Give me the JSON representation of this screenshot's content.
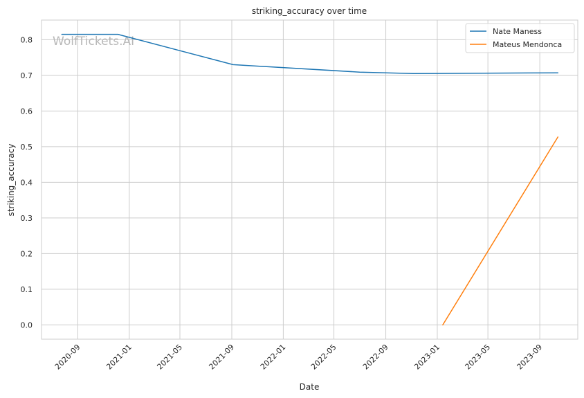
{
  "watermark": "WolfTickets.AI",
  "chart_data": {
    "type": "line",
    "title": "striking_accuracy over time",
    "xlabel": "Date",
    "ylabel": "striking_accuracy",
    "x_axis_type": "date",
    "xlim": [
      "2020-06-07",
      "2023-11-30"
    ],
    "ylim": [
      -0.04,
      0.855
    ],
    "x_ticks": [
      "2020-09",
      "2021-01",
      "2021-05",
      "2021-09",
      "2022-01",
      "2022-05",
      "2022-09",
      "2023-01",
      "2023-05",
      "2023-09"
    ],
    "y_ticks": [
      "0.0",
      "0.1",
      "0.2",
      "0.3",
      "0.4",
      "0.5",
      "0.6",
      "0.7",
      "0.8"
    ],
    "grid": true,
    "legend_position": "top-right",
    "series": [
      {
        "name": "Nate Maness",
        "color": "#1f77b4",
        "points": [
          {
            "x": "2020-07-25",
            "y": 0.815
          },
          {
            "x": "2020-12-05",
            "y": 0.815
          },
          {
            "x": "2021-09-04",
            "y": 0.73
          },
          {
            "x": "2022-07-01",
            "y": 0.709
          },
          {
            "x": "2022-11-05",
            "y": 0.705
          },
          {
            "x": "2023-10-14",
            "y": 0.707
          }
        ]
      },
      {
        "name": "Mateus Mendonca",
        "color": "#ff7f0e",
        "points": [
          {
            "x": "2023-01-14",
            "y": 0.0
          },
          {
            "x": "2023-10-14",
            "y": 0.527
          }
        ]
      }
    ]
  }
}
